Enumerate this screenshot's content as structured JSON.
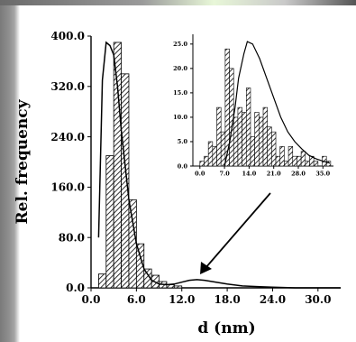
{
  "chart_data": [
    {
      "type": "bar",
      "role": "main",
      "xlabel": "d (nm)",
      "ylabel": "Rel. frequency",
      "xlim": [
        0,
        33
      ],
      "ylim": [
        0,
        400
      ],
      "xticks": [
        "0.0",
        "6.0",
        "12.0",
        "18.0",
        "24.0",
        "30.0"
      ],
      "yticks": [
        "0.0",
        "80.0",
        "160.0",
        "240.0",
        "320.0",
        "400.0"
      ],
      "bin_width": 1,
      "bins_x": [
        1,
        2,
        3,
        4,
        5,
        6,
        7,
        8,
        9,
        10,
        11
      ],
      "values": [
        22,
        210,
        390,
        340,
        140,
        70,
        30,
        20,
        10,
        5,
        3
      ],
      "curve": {
        "x": [
          1,
          1.5,
          2,
          2.5,
          3,
          3.5,
          4,
          5,
          6,
          7,
          8,
          9,
          10,
          11,
          12,
          13,
          14,
          15,
          16,
          18,
          20,
          22,
          24,
          27,
          30,
          33
        ],
        "y": [
          80,
          330,
          390,
          385,
          370,
          320,
          250,
          140,
          70,
          30,
          12,
          6,
          5,
          6,
          9,
          12,
          13,
          12,
          10,
          6,
          3,
          2,
          1,
          0,
          0,
          0
        ]
      },
      "pattern": "hatched"
    },
    {
      "type": "bar",
      "role": "inset",
      "xlim": [
        -2,
        38
      ],
      "ylim": [
        0,
        27
      ],
      "xticks": [
        "0.0",
        "7.0",
        "14.0",
        "21.0",
        "28.0",
        "35.0"
      ],
      "yticks": [
        "0.0",
        "5.0",
        "10.0",
        "15.0",
        "20.0",
        "25.0"
      ],
      "bin_width": 1.2,
      "bins_x": [
        0.0,
        1.2,
        2.4,
        3.6,
        4.8,
        6.0,
        7.2,
        8.4,
        9.6,
        10.8,
        12.0,
        13.2,
        14.4,
        15.6,
        16.8,
        18.0,
        19.2,
        20.4,
        21.6,
        22.8,
        24.0,
        25.2,
        26.4,
        27.6,
        28.8,
        30.0,
        31.2,
        32.4,
        33.6,
        34.8,
        36.0
      ],
      "values": [
        1,
        2,
        5,
        4,
        12,
        7,
        24,
        20,
        10,
        12,
        11,
        16,
        6,
        11,
        10,
        12,
        8,
        7,
        2,
        4,
        1,
        4,
        2,
        2,
        3,
        1,
        2,
        1,
        0,
        2,
        1
      ],
      "curve": {
        "x": [
          7.0,
          8.5,
          10.0,
          11.0,
          12.5,
          13.5,
          15.0,
          17.0,
          19.0,
          21.0,
          23.0,
          25.0,
          27.0,
          29.0,
          31.0,
          33.0,
          35.0,
          37.0
        ],
        "y": [
          0,
          5,
          12,
          18,
          23,
          25.5,
          25,
          22,
          18,
          14,
          10,
          7,
          5,
          3.5,
          2.2,
          1.5,
          1,
          0.6
        ]
      },
      "pattern": "hatched"
    }
  ]
}
